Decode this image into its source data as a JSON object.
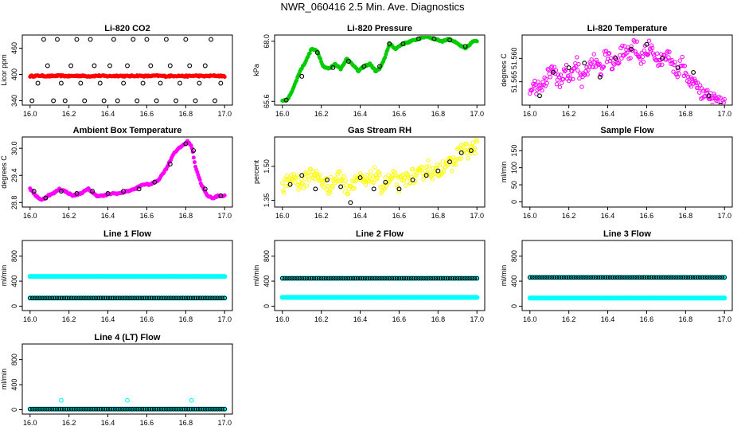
{
  "page": {
    "title": "NWR_060416  2.5 Min. Ave. Diagnostics"
  },
  "chart_data": [
    {
      "id": "co2",
      "type": "scatter",
      "title": "Li-820 CO2",
      "xlabel": "",
      "ylabel": "Licor ppm",
      "xlim": [
        16.0,
        17.0
      ],
      "ylim": [
        330,
        490
      ],
      "xticks": [
        "16.0",
        "16.2",
        "16.4",
        "16.6",
        "16.8",
        "17.0"
      ],
      "yticks": [
        {
          "v": 340,
          "label": "340"
        },
        {
          "v": 400,
          "label": "400"
        },
        {
          "v": 460,
          "label": "460"
        }
      ],
      "series": [
        {
          "color": "#ff0000",
          "marker": "dense",
          "x": [
            16.0,
            16.05,
            16.1,
            16.15,
            16.2,
            16.25,
            16.3,
            16.35,
            16.4,
            16.45,
            16.5,
            16.55,
            16.6,
            16.65,
            16.7,
            16.75,
            16.8,
            16.85,
            16.9,
            16.95,
            17.0
          ],
          "y": [
            396,
            397,
            396,
            397,
            396,
            397,
            396,
            397,
            396,
            397,
            396,
            397,
            396,
            397,
            396,
            397,
            396,
            397,
            396,
            397,
            396
          ]
        },
        {
          "color": "#000000",
          "marker": "open",
          "x": [
            16.01,
            16.04,
            16.07,
            16.09,
            16.12,
            16.14,
            16.16,
            16.18,
            16.21,
            16.24,
            16.26,
            16.28,
            16.31,
            16.33,
            16.36,
            16.38,
            16.41,
            16.43,
            16.45,
            16.48,
            16.5,
            16.53,
            16.55,
            16.58,
            16.6,
            16.62,
            16.65,
            16.67,
            16.7,
            16.72,
            16.75,
            16.77,
            16.8,
            16.82,
            16.85,
            16.87,
            16.9,
            16.93,
            16.95,
            16.98
          ],
          "y": [
            340,
            380,
            480,
            420,
            340,
            480,
            380,
            340,
            420,
            480,
            380,
            340,
            480,
            420,
            380,
            340,
            420,
            480,
            340,
            380,
            420,
            480,
            340,
            380,
            480,
            420,
            340,
            380,
            480,
            420,
            340,
            380,
            480,
            420,
            340,
            380,
            420,
            480,
            340,
            380
          ]
        }
      ]
    },
    {
      "id": "pressure",
      "type": "line",
      "title": "Li-820 Pressure",
      "xlabel": "",
      "ylabel": "kPa",
      "xlim": [
        16.0,
        17.0
      ],
      "ylim": [
        65.45,
        68.25
      ],
      "xticks": [
        "16.0",
        "16.2",
        "16.4",
        "16.6",
        "16.8",
        "17.0"
      ],
      "yticks": [
        {
          "v": 65.6,
          "label": "65.6"
        },
        {
          "v": 68.0,
          "label": "68.0"
        }
      ],
      "series": [
        {
          "color": "#00cc00",
          "marker": "dense",
          "x": [
            16.0,
            16.03,
            16.06,
            16.09,
            16.12,
            16.15,
            16.18,
            16.21,
            16.24,
            16.27,
            16.3,
            16.33,
            16.36,
            16.39,
            16.42,
            16.45,
            16.48,
            16.5,
            16.52,
            16.55,
            16.58,
            16.62,
            16.66,
            16.7,
            16.74,
            16.78,
            16.82,
            16.86,
            16.9,
            16.94,
            16.98
          ],
          "y": [
            65.6,
            65.7,
            66.2,
            66.8,
            67.2,
            67.7,
            67.6,
            67.0,
            66.9,
            67.1,
            66.9,
            67.3,
            67.1,
            66.8,
            67.0,
            67.1,
            66.8,
            66.9,
            67.2,
            67.9,
            67.7,
            67.9,
            68.0,
            68.1,
            68.2,
            68.1,
            68.0,
            68.1,
            67.9,
            67.7,
            68.0
          ]
        },
        {
          "color": "#000000",
          "marker": "open",
          "x": [
            16.02,
            16.1,
            16.18,
            16.26,
            16.34,
            16.42,
            16.5,
            16.55,
            16.62,
            16.7,
            16.78,
            16.86,
            16.94
          ],
          "y": [
            65.65,
            66.6,
            67.55,
            66.95,
            67.2,
            67.0,
            67.0,
            67.9,
            67.9,
            68.1,
            68.1,
            68.05,
            67.8
          ]
        }
      ]
    },
    {
      "id": "temperature",
      "type": "scatter",
      "title": "Li-820 Temperature",
      "xlabel": "",
      "ylabel": "degrees C",
      "xlim": [
        16.0,
        17.0
      ],
      "ylim": [
        51.57,
        51.555
      ],
      "xticks": [
        "16.0",
        "16.2",
        "16.4",
        "16.6",
        "16.8",
        "17.0"
      ],
      "yticks": [
        {
          "v": 51.572,
          "label": "51.572"
        },
        {
          "v": 51.565,
          "label": "51.565"
        },
        {
          "v": 51.56,
          "label": "51.560"
        }
      ],
      "series": [
        {
          "color": "#ff00ff",
          "marker": "open-dense",
          "x": [
            16.0,
            16.03,
            16.06,
            16.09,
            16.12,
            16.15,
            16.18,
            16.21,
            16.24,
            16.27,
            16.3,
            16.33,
            16.36,
            16.39,
            16.42,
            16.45,
            16.48,
            16.51,
            16.54,
            16.57,
            16.6,
            16.63,
            16.66,
            16.69,
            16.72,
            16.75,
            16.78,
            16.81,
            16.84,
            16.87,
            16.9,
            16.93,
            16.96,
            16.99
          ],
          "y": [
            51.568,
            51.566,
            51.567,
            51.564,
            51.563,
            51.565,
            51.562,
            51.564,
            51.561,
            51.565,
            51.562,
            51.56,
            51.563,
            51.559,
            51.561,
            51.56,
            51.558,
            51.559,
            51.557,
            51.56,
            51.558,
            51.557,
            51.561,
            51.56,
            51.559,
            51.563,
            51.561,
            51.564,
            51.565,
            51.567,
            51.568,
            51.569,
            51.569,
            51.57
          ]
        },
        {
          "color": "#000000",
          "marker": "open",
          "x": [
            16.05,
            16.12,
            16.2,
            16.28,
            16.36,
            16.44,
            16.52,
            16.6,
            16.68,
            16.76,
            16.84,
            16.92,
            16.98
          ],
          "y": [
            51.568,
            51.563,
            51.562,
            51.561,
            51.564,
            51.56,
            51.558,
            51.557,
            51.56,
            51.562,
            51.563,
            51.568,
            51.57
          ]
        }
      ]
    },
    {
      "id": "ambient",
      "type": "line",
      "title": "Ambient Box Temperature",
      "xlabel": "",
      "ylabel": "degrees C",
      "xlim": [
        16.0,
        17.0
      ],
      "ylim": [
        28.7,
        30.25
      ],
      "xticks": [
        "16.0",
        "16.2",
        "16.4",
        "16.6",
        "16.8",
        "17.0"
      ],
      "yticks": [
        {
          "v": 28.8,
          "label": "28.8"
        },
        {
          "v": 29.4,
          "label": "29.4"
        },
        {
          "v": 30.0,
          "label": "30.0"
        }
      ],
      "series": [
        {
          "color": "#ff00ff",
          "marker": "dense",
          "x": [
            16.0,
            16.03,
            16.06,
            16.09,
            16.12,
            16.15,
            16.18,
            16.22,
            16.26,
            16.3,
            16.34,
            16.38,
            16.42,
            16.46,
            16.5,
            16.54,
            16.58,
            16.62,
            16.66,
            16.7,
            16.74,
            16.78,
            16.81,
            16.83,
            16.85,
            16.88,
            16.91,
            16.94,
            16.97,
            17.0
          ],
          "y": [
            29.1,
            28.95,
            28.85,
            28.95,
            29.0,
            29.1,
            29.05,
            28.95,
            29.0,
            29.1,
            28.95,
            28.95,
            29.0,
            29.0,
            29.05,
            29.1,
            29.2,
            29.2,
            29.3,
            29.55,
            29.9,
            30.05,
            30.15,
            30.05,
            29.6,
            29.2,
            28.95,
            28.9,
            28.95,
            28.95
          ]
        },
        {
          "color": "#000000",
          "marker": "open",
          "x": [
            16.02,
            16.08,
            16.16,
            16.24,
            16.32,
            16.4,
            16.48,
            16.56,
            16.64,
            16.72,
            16.8,
            16.84,
            16.9,
            16.98
          ],
          "y": [
            29.05,
            28.9,
            29.05,
            29.0,
            29.05,
            29.0,
            29.05,
            29.1,
            29.25,
            29.65,
            30.1,
            29.95,
            29.1,
            28.95
          ]
        }
      ]
    },
    {
      "id": "rh",
      "type": "scatter",
      "title": "Gas Stream RH",
      "xlabel": "",
      "ylabel": "percent",
      "xlim": [
        16.0,
        17.0
      ],
      "ylim": [
        1.32,
        1.63
      ],
      "xticks": [
        "16.0",
        "16.2",
        "16.4",
        "16.6",
        "16.8",
        "17.0"
      ],
      "yticks": [
        {
          "v": 1.35,
          "label": "1.35"
        },
        {
          "v": 1.5,
          "label": "1.50"
        }
      ],
      "series": [
        {
          "color": "#ffff00",
          "marker": "open-dense",
          "x": [
            16.0,
            16.03,
            16.06,
            16.09,
            16.12,
            16.15,
            16.18,
            16.21,
            16.24,
            16.27,
            16.3,
            16.33,
            16.36,
            16.39,
            16.42,
            16.45,
            16.48,
            16.51,
            16.54,
            16.57,
            16.6,
            16.63,
            16.66,
            16.69,
            16.72,
            16.75,
            16.78,
            16.81,
            16.84,
            16.87,
            16.9,
            16.93,
            16.96,
            16.99
          ],
          "y": [
            1.4,
            1.43,
            1.46,
            1.42,
            1.44,
            1.48,
            1.45,
            1.43,
            1.41,
            1.44,
            1.46,
            1.4,
            1.43,
            1.45,
            1.42,
            1.44,
            1.47,
            1.41,
            1.43,
            1.45,
            1.42,
            1.44,
            1.46,
            1.45,
            1.47,
            1.5,
            1.46,
            1.49,
            1.52,
            1.5,
            1.55,
            1.58,
            1.56,
            1.59
          ]
        },
        {
          "color": "#000000",
          "marker": "open",
          "x": [
            16.04,
            16.1,
            16.17,
            16.23,
            16.3,
            16.35,
            16.4,
            16.47,
            16.53,
            16.6,
            16.67,
            16.74,
            16.8,
            16.86,
            16.92,
            16.97
          ],
          "y": [
            1.42,
            1.46,
            1.4,
            1.44,
            1.41,
            1.34,
            1.45,
            1.4,
            1.43,
            1.4,
            1.44,
            1.46,
            1.48,
            1.52,
            1.56,
            1.57
          ]
        }
      ]
    },
    {
      "id": "sample",
      "type": "scatter",
      "title": "Sample Flow",
      "xlabel": "",
      "ylabel": "ml/min",
      "xlim": [
        16.0,
        17.0
      ],
      "ylim": [
        -15,
        190
      ],
      "xticks": [
        "16.0",
        "16.2",
        "16.4",
        "16.6",
        "16.8",
        "17.0"
      ],
      "yticks": [
        {
          "v": 0,
          "label": "0"
        },
        {
          "v": 50,
          "label": "50"
        },
        {
          "v": 100,
          "label": "100"
        },
        {
          "v": 150,
          "label": "150"
        }
      ],
      "series": []
    },
    {
      "id": "line1",
      "type": "scatter",
      "title": "Line 1 Flow",
      "xlabel": "",
      "ylabel": "ml/min",
      "xlim": [
        16.0,
        17.0
      ],
      "ylim": [
        -70,
        1050
      ],
      "xticks": [
        "16.0",
        "16.2",
        "16.4",
        "16.6",
        "16.8",
        "17.0"
      ],
      "yticks": [
        {
          "v": 0,
          "label": "0"
        },
        {
          "v": 400,
          "label": "400"
        },
        {
          "v": 800,
          "label": "800"
        }
      ],
      "series": [
        {
          "color": "#00ffff",
          "marker": "band",
          "x": [
            16.0,
            17.0
          ],
          "y": [
            475,
            475
          ]
        },
        {
          "color": "#00ffff",
          "marker": "band",
          "x": [
            16.0,
            17.0
          ],
          "y": [
            130,
            130
          ]
        },
        {
          "color": "#000000",
          "marker": "open-row",
          "x": [
            16.0,
            17.0
          ],
          "y": [
            130,
            130
          ]
        }
      ]
    },
    {
      "id": "line2",
      "type": "scatter",
      "title": "Line 2 Flow",
      "xlabel": "",
      "ylabel": "ml/min",
      "xlim": [
        16.0,
        17.0
      ],
      "ylim": [
        -70,
        1050
      ],
      "xticks": [
        "16.0",
        "16.2",
        "16.4",
        "16.6",
        "16.8",
        "17.0"
      ],
      "yticks": [
        {
          "v": 0,
          "label": "0"
        },
        {
          "v": 400,
          "label": "400"
        },
        {
          "v": 800,
          "label": "800"
        }
      ],
      "series": [
        {
          "color": "#00ffff",
          "marker": "band",
          "x": [
            16.0,
            17.0
          ],
          "y": [
            140,
            140
          ]
        },
        {
          "color": "#00ffff",
          "marker": "band",
          "x": [
            16.0,
            17.0
          ],
          "y": [
            445,
            445
          ]
        },
        {
          "color": "#000000",
          "marker": "open-row",
          "x": [
            16.0,
            17.0
          ],
          "y": [
            445,
            445
          ]
        }
      ]
    },
    {
      "id": "line3",
      "type": "scatter",
      "title": "Line 3 Flow",
      "xlabel": "",
      "ylabel": "ml/min",
      "xlim": [
        16.0,
        17.0
      ],
      "ylim": [
        -70,
        1050
      ],
      "xticks": [
        "16.0",
        "16.2",
        "16.4",
        "16.6",
        "16.8",
        "17.0"
      ],
      "yticks": [
        {
          "v": 0,
          "label": "0"
        },
        {
          "v": 400,
          "label": "400"
        },
        {
          "v": 800,
          "label": "800"
        }
      ],
      "series": [
        {
          "color": "#00ffff",
          "marker": "band",
          "x": [
            16.0,
            17.0
          ],
          "y": [
            130,
            130
          ]
        },
        {
          "color": "#00ffff",
          "marker": "band",
          "x": [
            16.0,
            17.0
          ],
          "y": [
            460,
            460
          ]
        },
        {
          "color": "#000000",
          "marker": "open-row",
          "x": [
            16.0,
            17.0
          ],
          "y": [
            460,
            460
          ]
        }
      ]
    },
    {
      "id": "line4",
      "type": "scatter",
      "title": "Line 4 (LT) Flow",
      "xlabel": "",
      "ylabel": "ml/min",
      "xlim": [
        16.0,
        17.0
      ],
      "ylim": [
        -70,
        1050
      ],
      "xticks": [
        "16.0",
        "16.2",
        "16.4",
        "16.6",
        "16.8",
        "17.0"
      ],
      "yticks": [
        {
          "v": 0,
          "label": "0"
        },
        {
          "v": 400,
          "label": "400"
        },
        {
          "v": 800,
          "label": "800"
        }
      ],
      "series": [
        {
          "color": "#00ffff",
          "marker": "band",
          "x": [
            16.0,
            17.0
          ],
          "y": [
            10,
            10
          ]
        },
        {
          "color": "#000000",
          "marker": "open-row",
          "x": [
            16.0,
            17.0
          ],
          "y": [
            10,
            10
          ]
        },
        {
          "color": "#00ffff",
          "marker": "open",
          "x": [
            16.16,
            16.5,
            16.83
          ],
          "y": [
            150,
            150,
            150
          ]
        }
      ]
    }
  ]
}
